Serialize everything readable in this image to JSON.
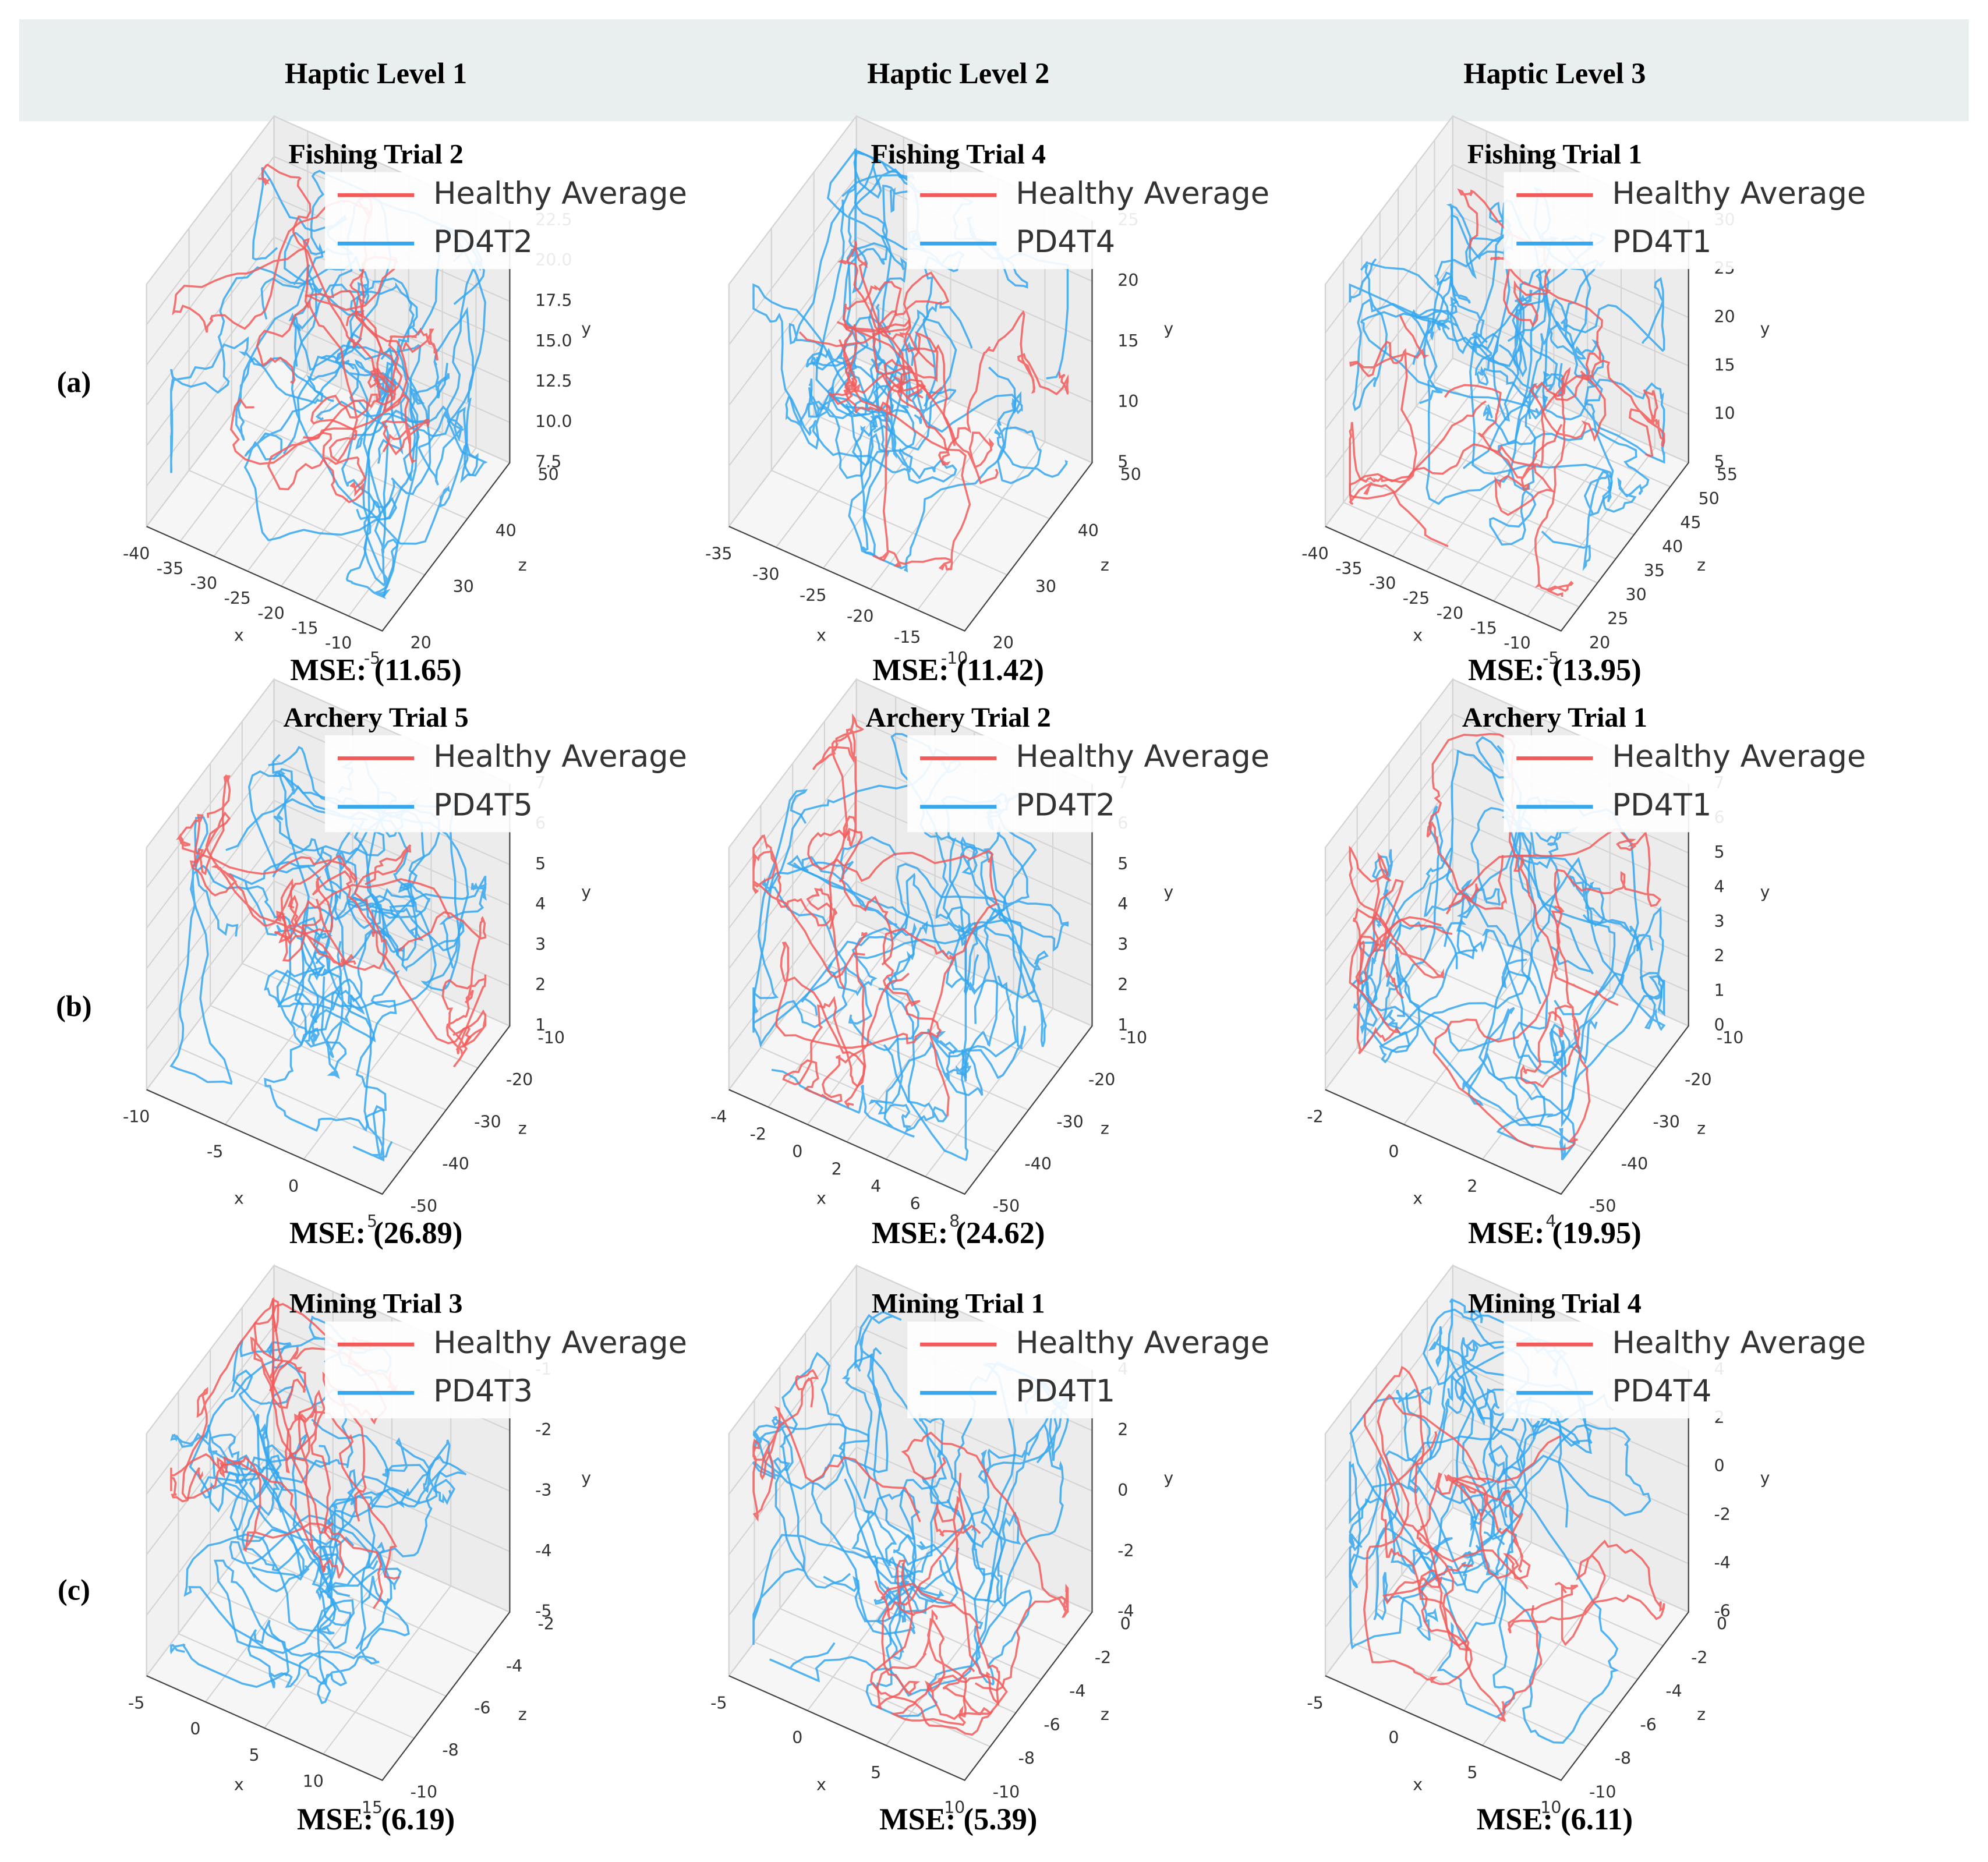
{
  "header": [
    "Haptic Level 1",
    "Haptic Level 2",
    "Haptic Level 3"
  ],
  "row_labels": [
    "(a)",
    "(b)",
    "(c)"
  ],
  "chart_data": [
    {
      "type": "line3d",
      "title": "Fishing Trial 2",
      "annotation": "MSE: (11.65)",
      "xlabel": "x",
      "ylabel": "y",
      "zlabel": "z",
      "series": [
        {
          "name": "Healthy Average",
          "color": "#f25a5a"
        },
        {
          "name": "PD4T2",
          "color": "#35a7ee"
        }
      ],
      "xlim": [
        -40,
        -5
      ],
      "xticks": [
        -40,
        -35,
        -30,
        -25,
        -20,
        -15,
        -10,
        -5
      ],
      "ylim": [
        7.5,
        22.5
      ],
      "yticks": [
        7.5,
        {
          "value": 10,
          "label": "10.0"
        },
        12.5,
        {
          "value": 15,
          "label": "15.0"
        },
        17.5,
        {
          "value": 20,
          "label": "20.0"
        },
        22.5
      ],
      "zlim": [
        20,
        50
      ],
      "zticks": [
        20,
        30,
        40,
        50
      ]
    },
    {
      "type": "line3d",
      "title": "Fishing Trial 4",
      "annotation": "MSE: (11.42)",
      "xlabel": "x",
      "ylabel": "y",
      "zlabel": "z",
      "series": [
        {
          "name": "Healthy Average",
          "color": "#f25a5a"
        },
        {
          "name": "PD4T4",
          "color": "#35a7ee"
        }
      ],
      "xlim": [
        -35,
        -10
      ],
      "xticks": [
        -35,
        -30,
        -25,
        -20,
        -15,
        -10
      ],
      "ylim": [
        5,
        25
      ],
      "yticks": [
        5,
        10,
        15,
        20,
        25
      ],
      "zlim": [
        20,
        50
      ],
      "zticks": [
        20,
        30,
        40,
        50
      ]
    },
    {
      "type": "line3d",
      "title": "Fishing Trial 1",
      "annotation": "MSE: (13.95)",
      "xlabel": "x",
      "ylabel": "y",
      "zlabel": "z",
      "series": [
        {
          "name": "Healthy Average",
          "color": "#f25a5a"
        },
        {
          "name": "PD4T1",
          "color": "#35a7ee"
        }
      ],
      "xlim": [
        -40,
        -5
      ],
      "xticks": [
        -40,
        -35,
        -30,
        -25,
        -20,
        -15,
        -10,
        -5
      ],
      "ylim": [
        5,
        30
      ],
      "yticks": [
        5,
        10,
        15,
        20,
        25,
        30
      ],
      "zlim": [
        20,
        55
      ],
      "zticks": [
        20,
        25,
        30,
        35,
        40,
        45,
        50,
        55
      ]
    },
    {
      "type": "line3d",
      "title": "Archery Trial 5",
      "annotation": "MSE: (26.89)",
      "xlabel": "x",
      "ylabel": "y",
      "zlabel": "z",
      "series": [
        {
          "name": "Healthy Average",
          "color": "#f25a5a"
        },
        {
          "name": "PD4T5",
          "color": "#35a7ee"
        }
      ],
      "xlim": [
        -10,
        5
      ],
      "xticks": [
        -10,
        -5,
        0,
        5
      ],
      "ylim": [
        1,
        7
      ],
      "yticks": [
        1,
        2,
        3,
        4,
        5,
        6,
        7
      ],
      "zlim": [
        -50,
        -10
      ],
      "zticks": [
        -50,
        -40,
        -30,
        -20,
        -10
      ]
    },
    {
      "type": "line3d",
      "title": "Archery Trial 2",
      "annotation": "MSE: (24.62)",
      "xlabel": "x",
      "ylabel": "y",
      "zlabel": "z",
      "series": [
        {
          "name": "Healthy Average",
          "color": "#f25a5a"
        },
        {
          "name": "PD4T2",
          "color": "#35a7ee"
        }
      ],
      "xlim": [
        -4,
        8
      ],
      "xticks": [
        -4,
        -2,
        0,
        2,
        4,
        6,
        8
      ],
      "ylim": [
        1,
        7
      ],
      "yticks": [
        1,
        2,
        3,
        4,
        5,
        6,
        7
      ],
      "zlim": [
        -50,
        -10
      ],
      "zticks": [
        -50,
        -40,
        -30,
        -20,
        -10
      ]
    },
    {
      "type": "line3d",
      "title": "Archery Trial 1",
      "annotation": "MSE: (19.95)",
      "xlabel": "x",
      "ylabel": "y",
      "zlabel": "z",
      "series": [
        {
          "name": "Healthy Average",
          "color": "#f25a5a"
        },
        {
          "name": "PD4T1",
          "color": "#35a7ee"
        }
      ],
      "xlim": [
        -2,
        4
      ],
      "xticks": [
        -2,
        0,
        2,
        4
      ],
      "ylim": [
        0,
        7
      ],
      "yticks": [
        0,
        1,
        2,
        3,
        4,
        5,
        6,
        7
      ],
      "zlim": [
        -50,
        -10
      ],
      "zticks": [
        -50,
        -40,
        -30,
        -20,
        -10
      ]
    },
    {
      "type": "line3d",
      "title": "Mining Trial 3",
      "annotation": "MSE: (6.19)",
      "xlabel": "x",
      "ylabel": "y",
      "zlabel": "z",
      "series": [
        {
          "name": "Healthy Average",
          "color": "#f25a5a"
        },
        {
          "name": "PD4T3",
          "color": "#35a7ee"
        }
      ],
      "xlim": [
        -5,
        15
      ],
      "xticks": [
        -5,
        0,
        5,
        10,
        15
      ],
      "ylim": [
        -5,
        -1
      ],
      "yticks": [
        -5,
        -4,
        -3,
        -2,
        -1
      ],
      "zlim": [
        -10,
        -2
      ],
      "zticks": [
        -10,
        -8,
        -6,
        -4,
        -2
      ]
    },
    {
      "type": "line3d",
      "title": "Mining Trial 1",
      "annotation": "MSE: (5.39)",
      "xlabel": "x",
      "ylabel": "y",
      "zlabel": "z",
      "series": [
        {
          "name": "Healthy Average",
          "color": "#f25a5a"
        },
        {
          "name": "PD4T1",
          "color": "#35a7ee"
        }
      ],
      "xlim": [
        -5,
        10
      ],
      "xticks": [
        -5,
        0,
        5,
        10
      ],
      "ylim": [
        -4,
        4
      ],
      "yticks": [
        -4,
        -2,
        0,
        2,
        4
      ],
      "zlim": [
        -10,
        0
      ],
      "zticks": [
        -10,
        -8,
        -6,
        -4,
        -2,
        0
      ]
    },
    {
      "type": "line3d",
      "title": "Mining Trial 4",
      "annotation": "MSE: (6.11)",
      "xlabel": "x",
      "ylabel": "y",
      "zlabel": "z",
      "series": [
        {
          "name": "Healthy Average",
          "color": "#f25a5a"
        },
        {
          "name": "PD4T4",
          "color": "#35a7ee"
        }
      ],
      "xlim": [
        -5,
        10
      ],
      "xticks": [
        -5,
        0,
        5,
        10
      ],
      "ylim": [
        -6,
        4
      ],
      "yticks": [
        -6,
        -4,
        -2,
        0,
        2,
        4
      ],
      "zlim": [
        -10,
        0
      ],
      "zticks": [
        -10,
        -8,
        -6,
        -4,
        -2,
        0
      ]
    }
  ]
}
